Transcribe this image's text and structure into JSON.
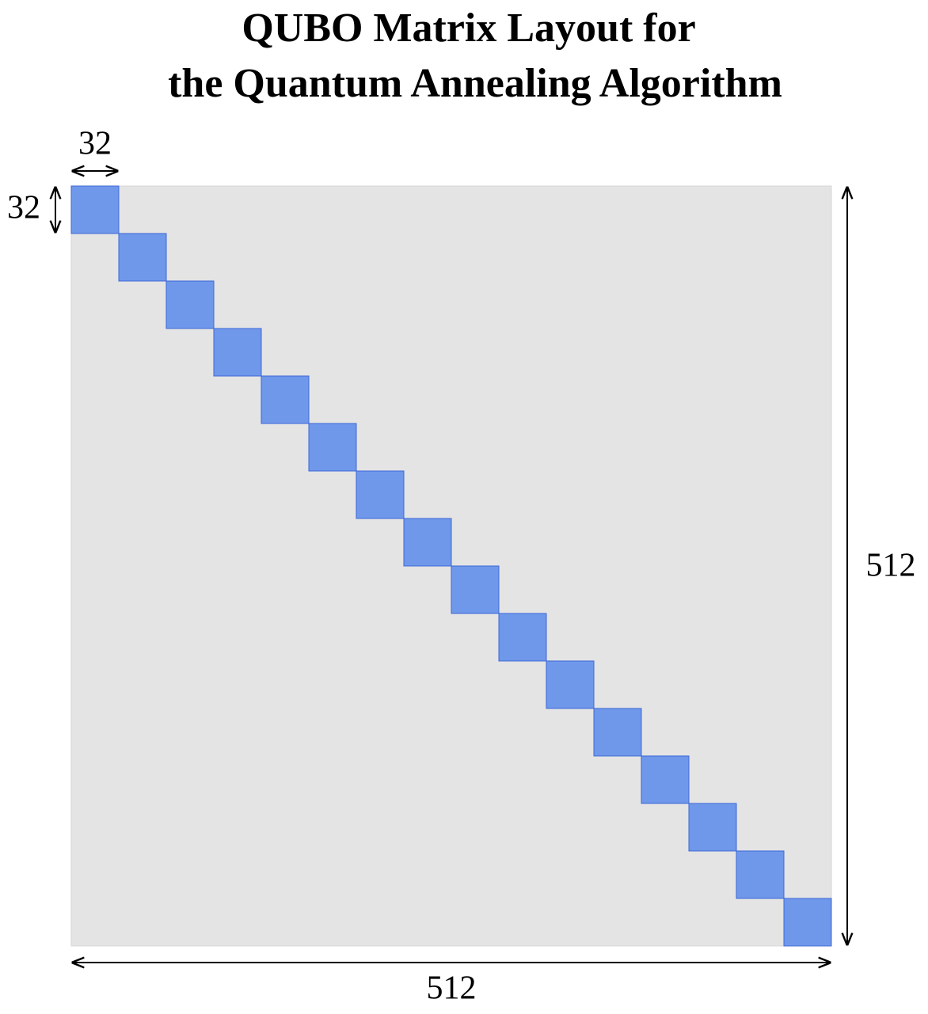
{
  "title": [
    "QUBO Matrix Layout for",
    "the Quantum Annealing Algorithm"
  ],
  "block_size": {
    "width": 32,
    "height": 32
  },
  "matrix_size": {
    "width": 512,
    "height": 512
  }
}
